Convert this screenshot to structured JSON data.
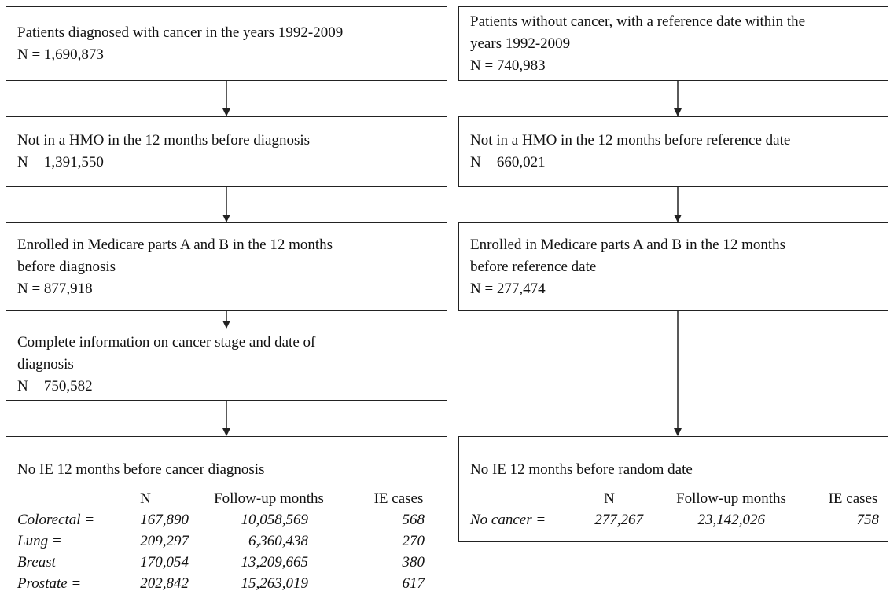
{
  "left_boxes": [
    {
      "lines": [
        "Patients diagnosed with cancer in the years 1992-2009",
        "N = 1,690,873"
      ]
    },
    {
      "lines": [
        "Not in a HMO in the 12 months before diagnosis",
        "N = 1,391,550"
      ]
    },
    {
      "lines": [
        "Enrolled in Medicare parts A and B in the 12 months",
        "before diagnosis",
        "N = 877,918"
      ]
    },
    {
      "lines": [
        "Complete information on cancer stage and date of",
        "diagnosis",
        "N = 750,582"
      ]
    }
  ],
  "left_final": {
    "title": "No IE 12 months before cancer diagnosis",
    "columns": [
      "N",
      "Follow-up months",
      "IE cases"
    ],
    "rows": [
      {
        "label": "Colorectal =",
        "values": [
          "167,890",
          "10,058,569",
          "568"
        ]
      },
      {
        "label": "Lung =",
        "values": [
          "209,297",
          "6,360,438",
          "270"
        ]
      },
      {
        "label": "Breast =",
        "values": [
          "170,054",
          "13,209,665",
          "380"
        ]
      },
      {
        "label": "Prostate =",
        "values": [
          "202,842",
          "15,263,019",
          "617"
        ]
      }
    ]
  },
  "right_boxes": [
    {
      "lines": [
        "Patients without cancer, with a reference date within the",
        "years 1992-2009",
        "N = 740,983"
      ]
    },
    {
      "lines": [
        "Not in a HMO in the 12 months before reference date",
        "N = 660,021"
      ]
    },
    {
      "lines": [
        "Enrolled in Medicare parts A and B in the 12 months",
        "before reference date",
        "N = 277,474"
      ]
    }
  ],
  "right_final": {
    "title": "No IE 12 months before random date",
    "columns": [
      "N",
      "Follow-up months",
      "IE cases"
    ],
    "rows": [
      {
        "label": "No cancer =",
        "values": [
          "277,267",
          "23,142,026",
          "758"
        ]
      }
    ]
  }
}
